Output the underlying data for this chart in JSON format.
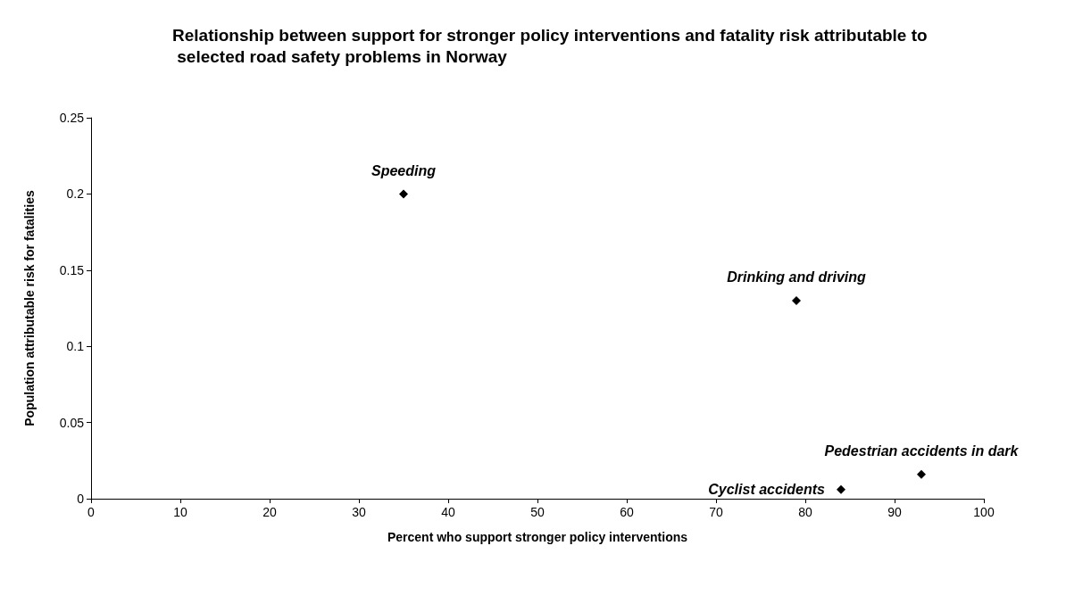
{
  "chart_data": {
    "type": "scatter",
    "title": "Relationship between support for stronger policy interventions and fatality risk attributable to selected road safety problems in Norway",
    "xlabel": "Percent who support stronger policy interventions",
    "ylabel": "Population attributable risk for fatalities",
    "x": [
      35,
      79,
      84,
      93
    ],
    "values": [
      0.2,
      0.13,
      0.006,
      0.016
    ],
    "color": "#000000",
    "marker": "diamond",
    "xlim": [
      0,
      100
    ],
    "xticks": [
      0,
      10,
      20,
      30,
      40,
      50,
      60,
      70,
      80,
      90,
      100
    ],
    "ylim": [
      0,
      0.25
    ],
    "yticks": [
      0,
      0.05,
      0.1,
      0.15,
      0.2,
      0.25
    ],
    "annotations": [
      {
        "text": "Speeding",
        "x": 35,
        "y": 0.2
      },
      {
        "text": "Drinking and driving",
        "x": 79,
        "y": 0.13
      },
      {
        "text": "Cyclist accidents",
        "x": 84,
        "y": 0.006
      },
      {
        "text": "Pedestrian accidents in dark",
        "x": 93,
        "y": 0.016
      }
    ]
  }
}
